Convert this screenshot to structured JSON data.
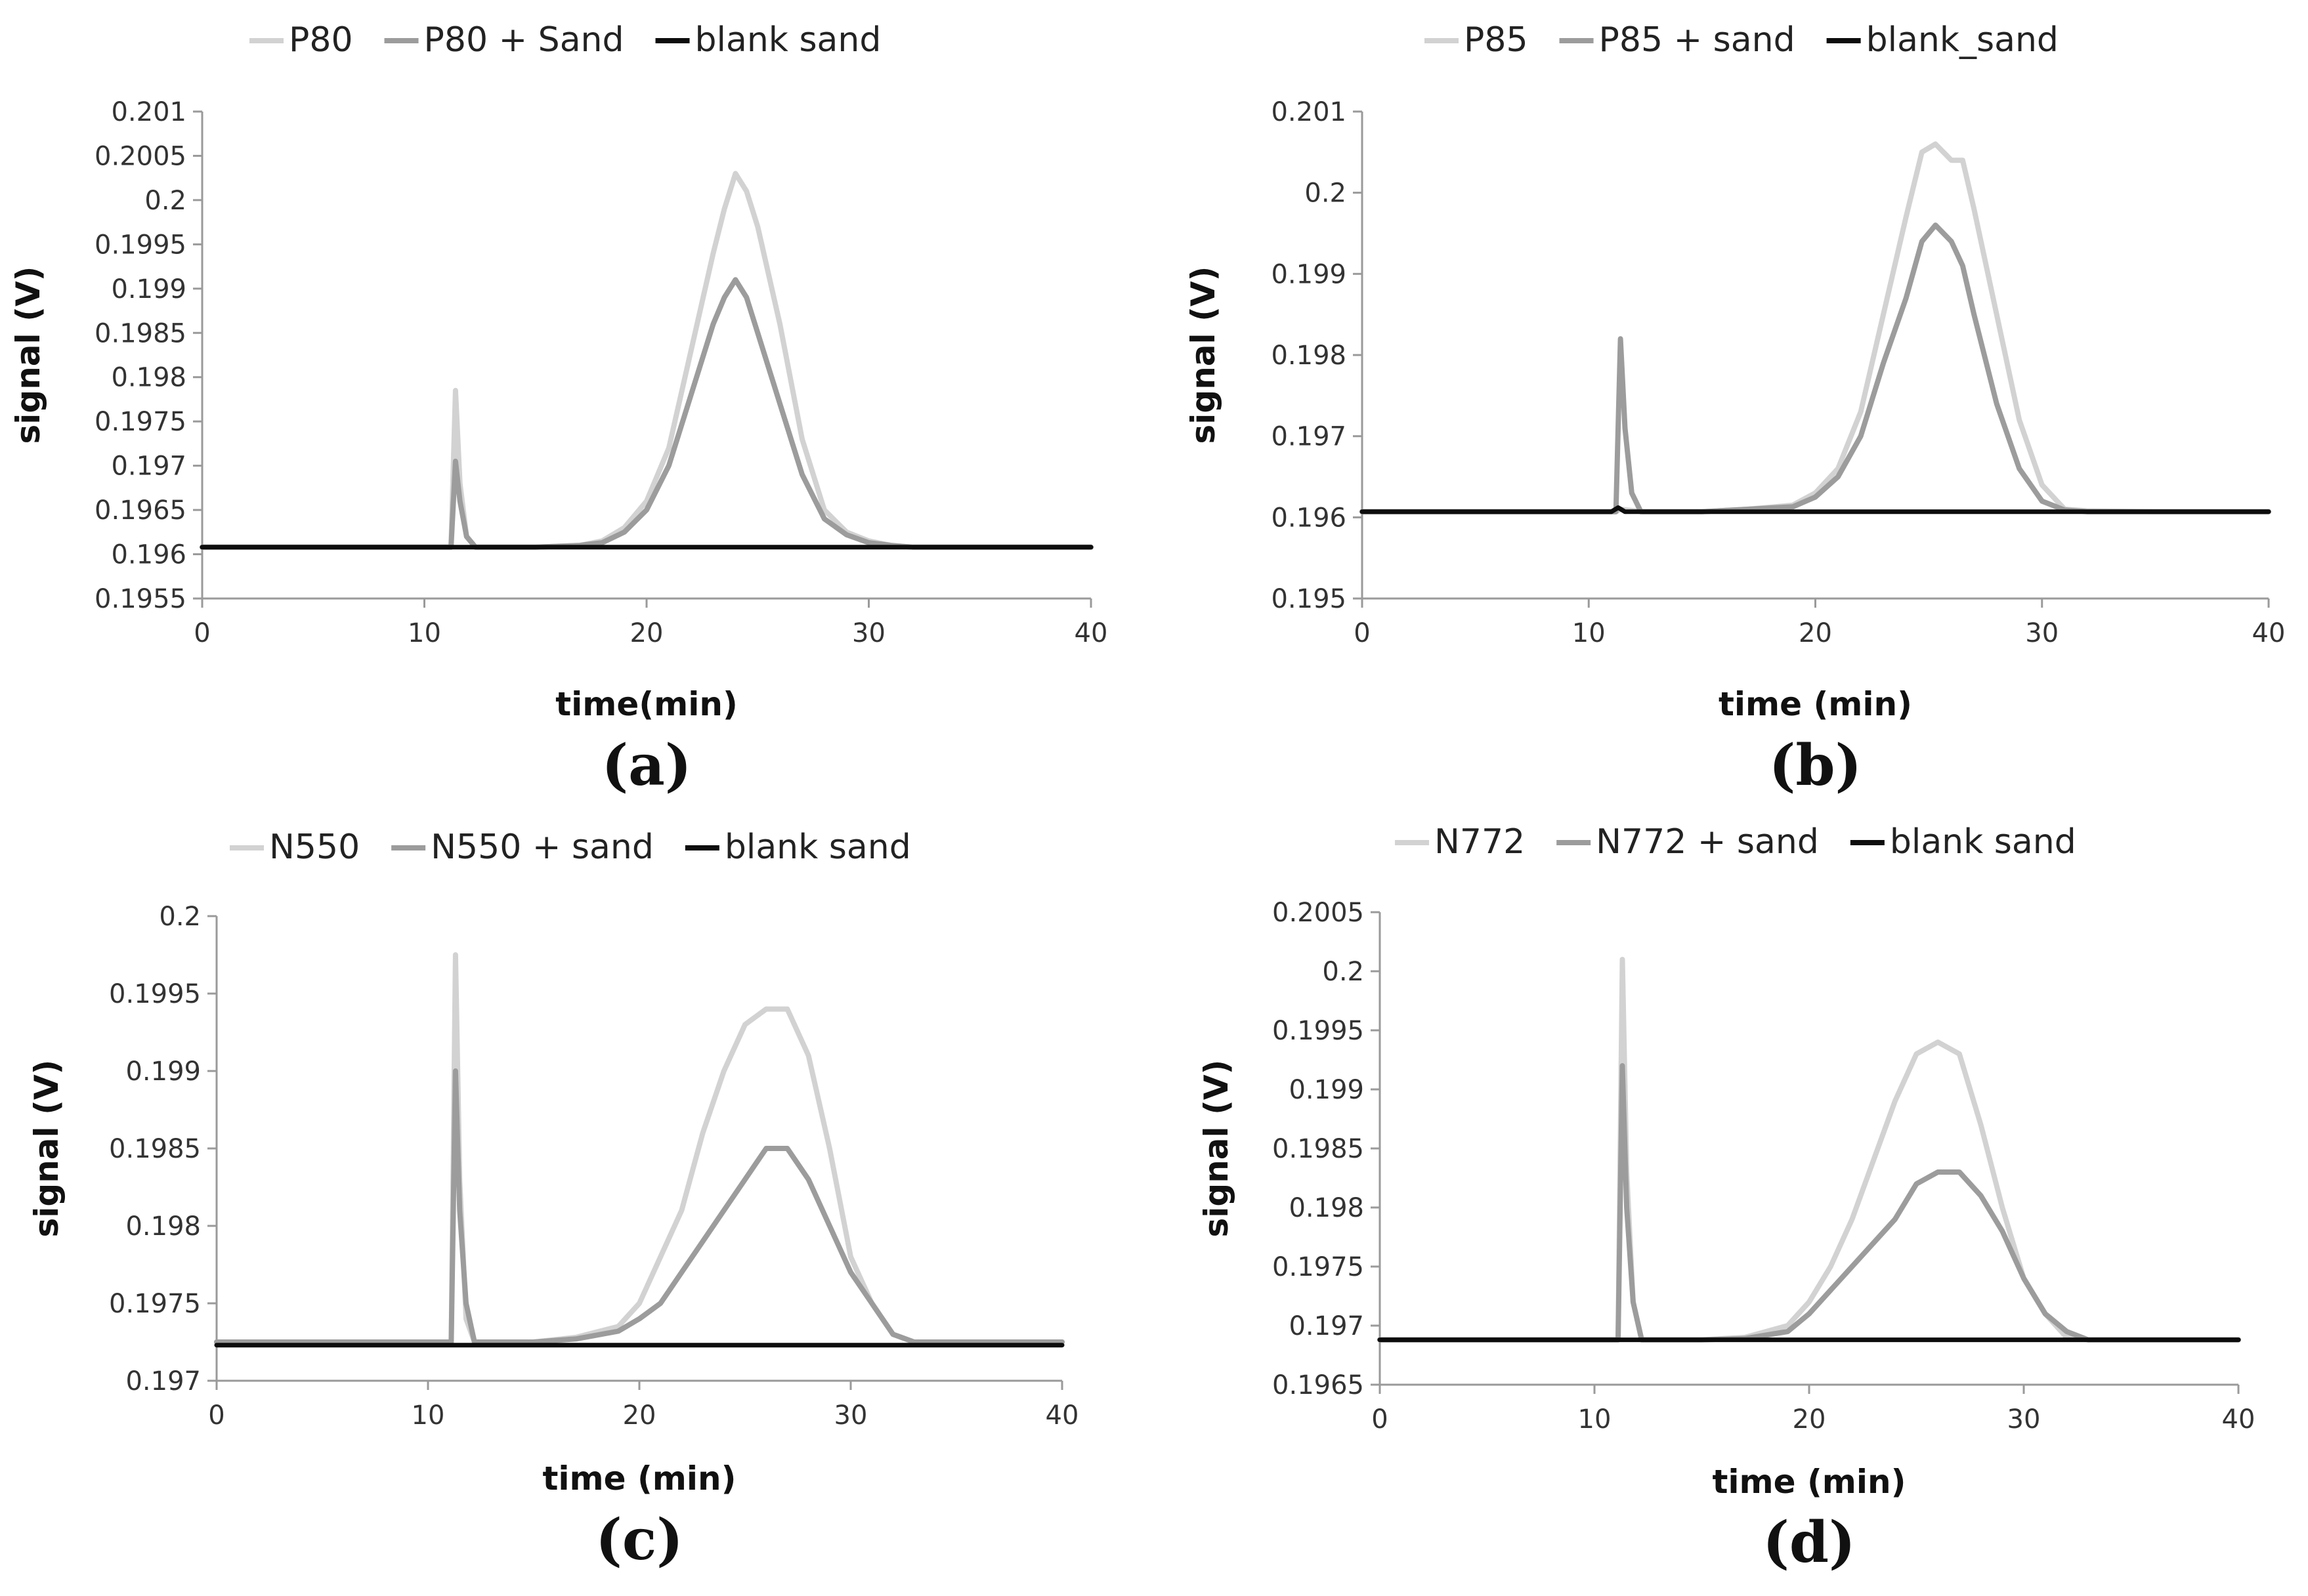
{
  "colors": {
    "sample": "#d2d2d2",
    "sample_sand": "#9c9c9c",
    "blank": "#0d0d0d"
  },
  "chart_data": [
    {
      "type": "line",
      "panel_label": "(a)",
      "xlabel": "time(min)",
      "ylabel": "signal (V)",
      "xlim": [
        0,
        40
      ],
      "ylim": [
        0.1955,
        0.201
      ],
      "xticks": [
        "0",
        "10",
        "20",
        "30",
        "40"
      ],
      "yticks": [
        "0.1955",
        "0.196",
        "0.1965",
        "0.197",
        "0.1975",
        "0.198",
        "0.1985",
        "0.199",
        "0.1995",
        "0.2",
        "0.2005",
        "0.201"
      ],
      "legend_position": "top",
      "series": [
        {
          "name": "P80",
          "color_key": "sample",
          "x": [
            0,
            11.0,
            11.2,
            11.4,
            11.6,
            11.9,
            12.3,
            15,
            17,
            18,
            19,
            20,
            21,
            22,
            23,
            23.5,
            24,
            24.5,
            25,
            26,
            27,
            28,
            29,
            30,
            31,
            32,
            35,
            40
          ],
          "y": [
            0.19608,
            0.19608,
            0.19608,
            0.19785,
            0.1968,
            0.1962,
            0.19608,
            0.19608,
            0.1961,
            0.19615,
            0.1963,
            0.1966,
            0.1972,
            0.1983,
            0.1994,
            0.1999,
            0.2003,
            0.2001,
            0.1997,
            0.1986,
            0.1973,
            0.1965,
            0.19625,
            0.19615,
            0.1961,
            0.19608,
            0.19608,
            0.19608
          ]
        },
        {
          "name": "P80 + Sand",
          "color_key": "sample_sand",
          "x": [
            0,
            11.0,
            11.2,
            11.4,
            11.6,
            11.9,
            12.3,
            15,
            17,
            18,
            19,
            20,
            21,
            22,
            23,
            23.5,
            24,
            24.5,
            25,
            26,
            27,
            28,
            29,
            30,
            31,
            32,
            35,
            40
          ],
          "y": [
            0.19608,
            0.19608,
            0.19608,
            0.19705,
            0.1966,
            0.1962,
            0.19608,
            0.19608,
            0.1961,
            0.19613,
            0.19625,
            0.1965,
            0.197,
            0.1978,
            0.1986,
            0.1989,
            0.1991,
            0.1989,
            0.1985,
            0.1977,
            0.1969,
            0.1964,
            0.19622,
            0.19613,
            0.1961,
            0.19608,
            0.19608,
            0.19608
          ]
        },
        {
          "name": "blank sand",
          "color_key": "blank",
          "x": [
            0,
            40
          ],
          "y": [
            0.19608,
            0.19608
          ]
        }
      ]
    },
    {
      "type": "line",
      "panel_label": "(b)",
      "xlabel": "time (min)",
      "ylabel": "signal (V)",
      "xlim": [
        0,
        40
      ],
      "ylim": [
        0.195,
        0.201
      ],
      "xticks": [
        "0",
        "10",
        "20",
        "30",
        "40"
      ],
      "yticks": [
        "0.195",
        "0.196",
        "0.197",
        "0.198",
        "0.199",
        "0.2",
        "0.201"
      ],
      "legend_position": "top",
      "series": [
        {
          "name": "P85",
          "color_key": "sample",
          "x": [
            0,
            11.0,
            11.2,
            11.4,
            11.7,
            12.0,
            12.4,
            15,
            17,
            19,
            20,
            21,
            22,
            23,
            24,
            24.7,
            25.3,
            26,
            26.5,
            27,
            28,
            29,
            30,
            31,
            32,
            35,
            40
          ],
          "y": [
            0.19607,
            0.19607,
            0.19607,
            0.1961,
            0.19609,
            0.19608,
            0.19607,
            0.19607,
            0.1961,
            0.19615,
            0.1963,
            0.1966,
            0.1973,
            0.1985,
            0.1997,
            0.2005,
            0.2006,
            0.2004,
            0.2004,
            0.1998,
            0.1985,
            0.1972,
            0.1964,
            0.1961,
            0.19608,
            0.19607,
            0.19607
          ]
        },
        {
          "name": "P85 + sand",
          "color_key": "sample_sand",
          "x": [
            0,
            11.0,
            11.2,
            11.4,
            11.6,
            11.9,
            12.3,
            15,
            17,
            19,
            20,
            21,
            22,
            23,
            24,
            24.7,
            25.3,
            26,
            26.5,
            27,
            28,
            29,
            30,
            31,
            32,
            35,
            40
          ],
          "y": [
            0.19607,
            0.19607,
            0.19607,
            0.1982,
            0.1971,
            0.1963,
            0.19607,
            0.19607,
            0.1961,
            0.19613,
            0.19625,
            0.1965,
            0.197,
            0.1979,
            0.1987,
            0.1994,
            0.1996,
            0.1994,
            0.1991,
            0.1985,
            0.1974,
            0.1966,
            0.1962,
            0.19609,
            0.19607,
            0.19607,
            0.19607
          ]
        },
        {
          "name": "blank_sand",
          "color_key": "blank",
          "x": [
            0,
            11.0,
            11.3,
            11.6,
            40
          ],
          "y": [
            0.19607,
            0.19607,
            0.19612,
            0.19607,
            0.19607
          ]
        }
      ]
    },
    {
      "type": "line",
      "panel_label": "(c)",
      "xlabel": "time (min)",
      "ylabel": "signal (V)",
      "xlim": [
        0,
        40
      ],
      "ylim": [
        0.197,
        0.2
      ],
      "xticks": [
        "0",
        "10",
        "20",
        "30",
        "40"
      ],
      "yticks": [
        "0.197",
        "0.1975",
        "0.198",
        "0.1985",
        "0.199",
        "0.1995",
        "0.2"
      ],
      "legend_position": "top",
      "series": [
        {
          "name": "N550",
          "color_key": "sample",
          "x": [
            0,
            10.9,
            11.1,
            11.3,
            11.5,
            11.8,
            12.2,
            15,
            17,
            19,
            20,
            21,
            22,
            23,
            24,
            25,
            26,
            27,
            28,
            29,
            30,
            31,
            32,
            33,
            35,
            40
          ],
          "y": [
            0.19725,
            0.19725,
            0.19725,
            0.19975,
            0.1983,
            0.1974,
            0.19725,
            0.19725,
            0.19728,
            0.19735,
            0.1975,
            0.1978,
            0.1981,
            0.1986,
            0.199,
            0.1993,
            0.1994,
            0.1994,
            0.1991,
            0.1985,
            0.1978,
            0.1975,
            0.1973,
            0.19725,
            0.19725,
            0.19725
          ]
        },
        {
          "name": "N550 + sand",
          "color_key": "sample_sand",
          "x": [
            0,
            10.9,
            11.1,
            11.3,
            11.5,
            11.8,
            12.2,
            15,
            17,
            19,
            20,
            21,
            22,
            23,
            24,
            25,
            26,
            27,
            28,
            29,
            30,
            31,
            32,
            33,
            35,
            40
          ],
          "y": [
            0.19725,
            0.19725,
            0.19725,
            0.199,
            0.1981,
            0.1975,
            0.19725,
            0.19725,
            0.19727,
            0.19732,
            0.1974,
            0.1975,
            0.1977,
            0.1979,
            0.1981,
            0.1983,
            0.1985,
            0.1985,
            0.1983,
            0.198,
            0.1977,
            0.1975,
            0.1973,
            0.19725,
            0.19725,
            0.19725
          ]
        },
        {
          "name": "blank sand",
          "color_key": "blank",
          "x": [
            0,
            40
          ],
          "y": [
            0.19723,
            0.19723
          ]
        }
      ]
    },
    {
      "type": "line",
      "panel_label": "(d)",
      "xlabel": "time (min)",
      "ylabel": "signal (V)",
      "xlim": [
        0,
        40
      ],
      "ylim": [
        0.1965,
        0.2005
      ],
      "xticks": [
        "0",
        "10",
        "20",
        "30",
        "40"
      ],
      "yticks": [
        "0.1965",
        "0.197",
        "0.1975",
        "0.198",
        "0.1985",
        "0.199",
        "0.1995",
        "0.2",
        "0.2005"
      ],
      "legend_position": "top",
      "series": [
        {
          "name": "N772",
          "color_key": "sample",
          "x": [
            0,
            10.9,
            11.1,
            11.3,
            11.5,
            11.8,
            12.2,
            15,
            17,
            19,
            20,
            21,
            22,
            23,
            24,
            25,
            26,
            27,
            28,
            29,
            30,
            31,
            32,
            33,
            35,
            40
          ],
          "y": [
            0.19688,
            0.19688,
            0.19688,
            0.2001,
            0.1983,
            0.1972,
            0.19688,
            0.19688,
            0.1969,
            0.197,
            0.1972,
            0.1975,
            0.1979,
            0.1984,
            0.1989,
            0.1993,
            0.1994,
            0.1993,
            0.1987,
            0.198,
            0.1974,
            0.1971,
            0.1969,
            0.19688,
            0.19688,
            0.19688
          ]
        },
        {
          "name": "N772 + sand",
          "color_key": "sample_sand",
          "x": [
            0,
            10.9,
            11.1,
            11.3,
            11.5,
            11.8,
            12.2,
            15,
            17,
            19,
            20,
            21,
            22,
            23,
            24,
            25,
            26,
            27,
            28,
            29,
            30,
            31,
            32,
            33,
            35,
            40
          ],
          "y": [
            0.19688,
            0.19688,
            0.19688,
            0.1992,
            0.198,
            0.1972,
            0.19688,
            0.19688,
            0.19689,
            0.19695,
            0.1971,
            0.1973,
            0.1975,
            0.1977,
            0.1979,
            0.1982,
            0.1983,
            0.1983,
            0.1981,
            0.1978,
            0.1974,
            0.1971,
            0.19695,
            0.19688,
            0.19688,
            0.19688
          ]
        },
        {
          "name": "blank sand",
          "color_key": "blank",
          "x": [
            0,
            40
          ],
          "y": [
            0.19688,
            0.19688
          ]
        }
      ]
    }
  ]
}
